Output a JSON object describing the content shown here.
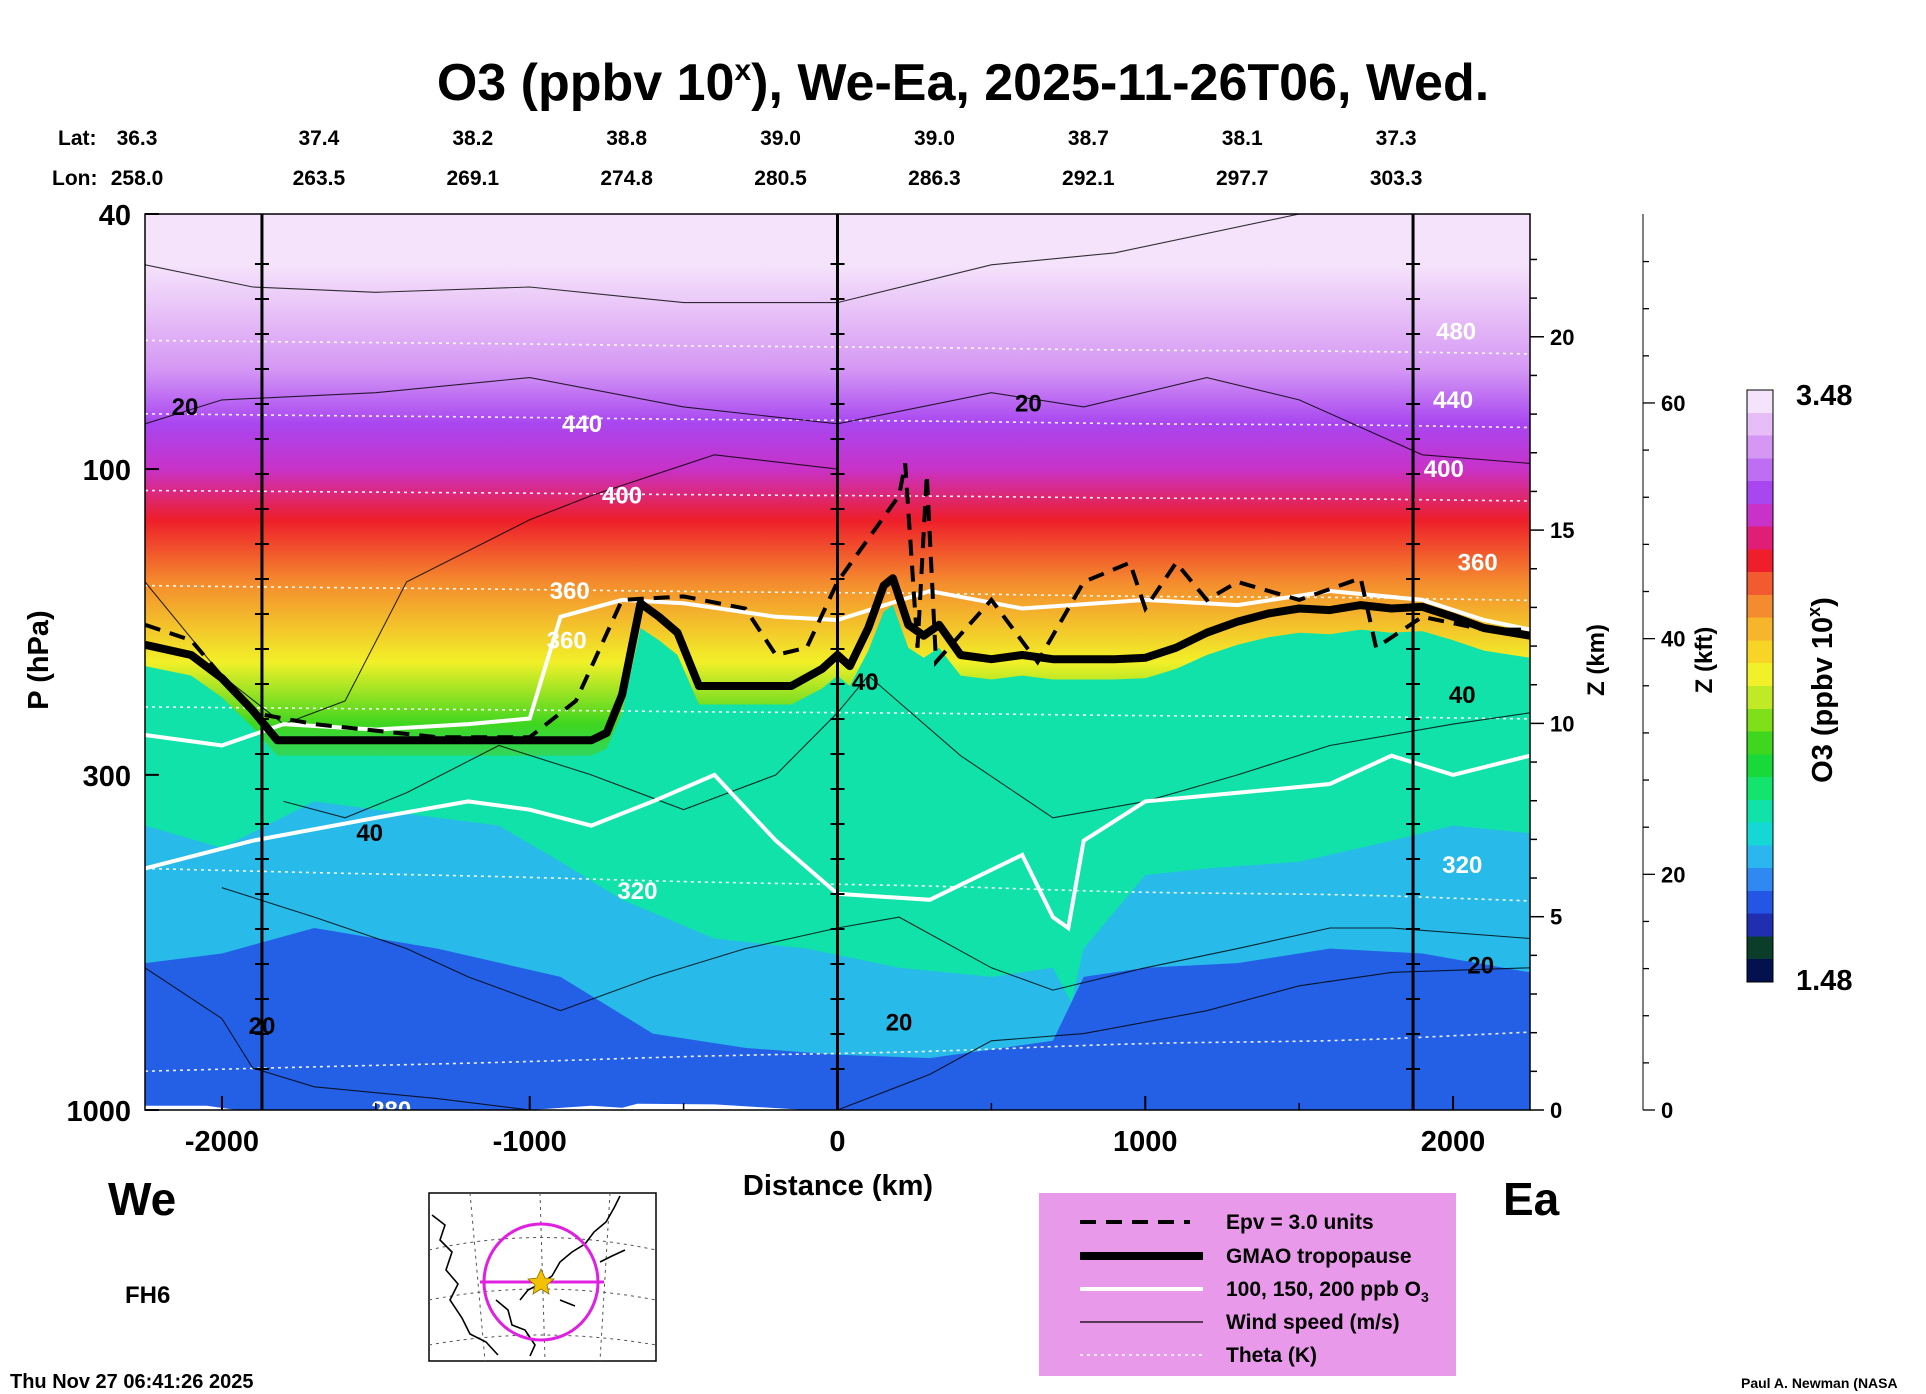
{
  "colors": {
    "background": "#ffffff",
    "legend_box": "#e999e9",
    "map_track": "#e020e0",
    "map_star": "#f2c200"
  },
  "chart_data": {
    "type": "heatmap",
    "title_prefix": "O3 (ppbv 10",
    "title_superscript": "x",
    "title_suffix": "), We-Ea, 2025-11-26T06, Wed.",
    "xlabel": "Distance (km)",
    "ylabel": "P (hPa)",
    "xlim": [
      -2250,
      2250
    ],
    "ylim": [
      1000,
      40
    ],
    "x_ticks": [
      {
        "value": -2000,
        "label": "-2000"
      },
      {
        "value": -1000,
        "label": "-1000"
      },
      {
        "value": 0,
        "label": "0"
      },
      {
        "value": 1000,
        "label": "1000"
      },
      {
        "value": 2000,
        "label": "2000"
      }
    ],
    "y_ticks": [
      {
        "value": 40,
        "label": "40"
      },
      {
        "value": 100,
        "label": "100"
      },
      {
        "value": 300,
        "label": "300"
      },
      {
        "value": 1000,
        "label": "1000"
      }
    ],
    "z_km_label": "Z (km)",
    "z_km_ticks": [
      {
        "value": 0,
        "label": "0"
      },
      {
        "value": 5,
        "label": "5"
      },
      {
        "value": 10,
        "label": "10"
      },
      {
        "value": 15,
        "label": "15"
      },
      {
        "value": 20,
        "label": "20"
      }
    ],
    "z_kft_label": "Z (kft)",
    "z_kft_ticks": [
      {
        "value": 0,
        "label": "0"
      },
      {
        "value": 20,
        "label": "20"
      },
      {
        "value": 40,
        "label": "40"
      },
      {
        "value": 60,
        "label": "60"
      }
    ],
    "lat_header": "Lat:",
    "lon_header": "Lon:",
    "stations": [
      {
        "distance": -2250,
        "lat": "36.3",
        "lon": "258.0"
      },
      {
        "distance": -1750,
        "lat": "37.4",
        "lon": "263.5"
      },
      {
        "distance": -1250,
        "lat": "38.2",
        "lon": "269.1"
      },
      {
        "distance": -750,
        "lat": "38.8",
        "lon": "274.8"
      },
      {
        "distance": -250,
        "lat": "39.0",
        "lon": "280.5"
      },
      {
        "distance": 250,
        "lat": "39.0",
        "lon": "286.3"
      },
      {
        "distance": 750,
        "lat": "38.7",
        "lon": "292.1"
      },
      {
        "distance": 1250,
        "lat": "38.1",
        "lon": "297.7"
      },
      {
        "distance": 1750,
        "lat": "37.3",
        "lon": "303.3"
      }
    ],
    "vertical_lines_km": [
      -1870,
      0,
      1870
    ],
    "colorbar": {
      "label_prefix": "O3 (ppbv 10",
      "label_superscript": "x",
      "label_suffix": ")",
      "min": 1.48,
      "max": 3.48,
      "min_label": "1.48",
      "max_label": "3.48",
      "colors": [
        "#03124f",
        "#0b3d2b",
        "#1f2fb0",
        "#2456e6",
        "#2f89f0",
        "#2bb6f0",
        "#15d8d6",
        "#10e2aa",
        "#14e46d",
        "#19d83a",
        "#3fd61f",
        "#7fe01a",
        "#c0ea26",
        "#f2f028",
        "#f7d425",
        "#f6b52a",
        "#f48b2e",
        "#f25a30",
        "#ee1e2a",
        "#e11e75",
        "#c832c8",
        "#a846f0",
        "#bd6ef2",
        "#d497f4",
        "#e6bdf7",
        "#f5e3fb"
      ]
    },
    "ozone_profile": [
      {
        "p": 1000,
        "v": 1.55
      },
      {
        "p": 850,
        "v": 1.66
      },
      {
        "p": 700,
        "v": 1.76
      },
      {
        "p": 500,
        "v": 1.87
      },
      {
        "p": 350,
        "v": 2.0
      },
      {
        "p": 250,
        "v": 2.27
      },
      {
        "p": 200,
        "v": 2.5
      },
      {
        "p": 150,
        "v": 2.72
      },
      {
        "p": 120,
        "v": 2.93
      },
      {
        "p": 100,
        "v": 3.05
      },
      {
        "p": 85,
        "v": 3.15
      },
      {
        "p": 70,
        "v": 3.26
      },
      {
        "p": 58,
        "v": 3.36
      },
      {
        "p": 48,
        "v": 3.44
      },
      {
        "p": 40,
        "v": 3.48
      }
    ],
    "tropopause": {
      "x": [
        -2250,
        -2100,
        -2000,
        -1900,
        -1820,
        -1500,
        -1200,
        -1000,
        -800,
        -750,
        -700,
        -640,
        -580,
        -520,
        -450,
        -380,
        -300,
        -150,
        -50,
        0,
        40,
        100,
        150,
        180,
        230,
        280,
        330,
        400,
        500,
        600,
        700,
        800,
        900,
        1000,
        1100,
        1200,
        1300,
        1400,
        1500,
        1600,
        1700,
        1800,
        1900,
        2000,
        2100,
        2250
      ],
      "p": [
        188,
        195,
        212,
        238,
        265,
        265,
        265,
        265,
        265,
        258,
        225,
        162,
        170,
        180,
        218,
        218,
        218,
        218,
        205,
        195,
        203,
        177,
        152,
        148,
        175,
        182,
        175,
        195,
        198,
        195,
        198,
        198,
        198,
        197,
        190,
        180,
        173,
        168,
        165,
        166,
        163,
        165,
        164,
        170,
        177,
        182
      ]
    },
    "theta_levels": [
      {
        "label": "280",
        "label_x": -1450
      },
      {
        "label": "320",
        "label_x": -650
      },
      {
        "label": "320",
        "label_x": 2030
      },
      {
        "label": "360",
        "label_x": -870
      },
      {
        "label": "360",
        "label_x": 2080
      },
      {
        "label": "400",
        "label_x": -700
      },
      {
        "label": "400",
        "label_x": 1970
      },
      {
        "label": "440",
        "label_x": -830
      },
      {
        "label": "440",
        "label_x": 2000
      },
      {
        "label": "480",
        "label_x": 2010
      }
    ],
    "wind_labels": [
      {
        "label": "20",
        "x": -2120,
        "p": 80
      },
      {
        "label": "20",
        "x": 620,
        "p": 79
      },
      {
        "label": "40",
        "x": -1520,
        "p": 370
      },
      {
        "label": "40",
        "x": 90,
        "p": 215
      },
      {
        "label": "40",
        "x": 2030,
        "p": 225
      },
      {
        "label": "20",
        "x": -1870,
        "p": 740
      },
      {
        "label": "20",
        "x": 200,
        "p": 730
      },
      {
        "label": "20",
        "x": 2090,
        "p": 595
      }
    ],
    "white_contour_labels": [
      {
        "label": "360",
        "x": -880,
        "p": 185
      }
    ],
    "legend": [
      {
        "style": "dashed",
        "label": "Epv = 3.0 units"
      },
      {
        "style": "thick",
        "label": "GMAO tropopause"
      },
      {
        "style": "white",
        "label": "100, 150, 200 ppb O"
      },
      {
        "style": "thin",
        "label": "Wind speed (m/s)"
      },
      {
        "style": "dotted",
        "label": "Theta (K)"
      }
    ],
    "legend_o3_subscript": "3"
  },
  "left_label": "We",
  "right_label": "Ea",
  "forecast_hour": "FH6",
  "timestamp": "Thu Nov 27 06:41:26 2025",
  "credit": "Paul A. Newman (NASA"
}
